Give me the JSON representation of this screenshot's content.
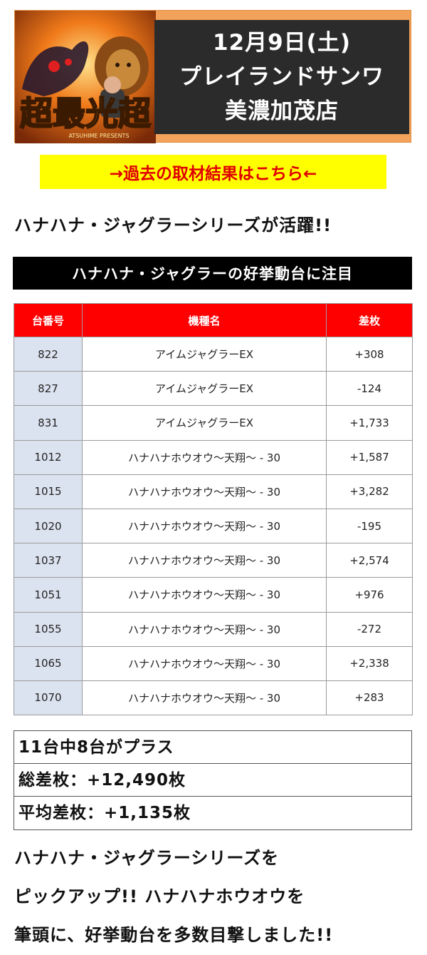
{
  "banner": {
    "logo_text": "超最光超",
    "logo_subtext": "ATSUHIME PRESENTS",
    "date": "12月9日(土)",
    "store_line1": "プレイランドサンワ",
    "store_line2": "美濃加茂店"
  },
  "past_link": "→過去の取材結果はこちら←",
  "headline": "ハナハナ・ジャグラーシリーズが活躍!!",
  "section_title": "ハナハナ・ジャグラーの好挙動台に注目",
  "table": {
    "headers": [
      "台番号",
      "機種名",
      "差枚"
    ],
    "rows": [
      [
        "822",
        "アイムジャグラーEX",
        "+308"
      ],
      [
        "827",
        "アイムジャグラーEX",
        "-124"
      ],
      [
        "831",
        "アイムジャグラーEX",
        "+1,733"
      ],
      [
        "1012",
        "ハナハナホウオウ～天翔～ - 30",
        "+1,587"
      ],
      [
        "1015",
        "ハナハナホウオウ～天翔～ - 30",
        "+3,282"
      ],
      [
        "1020",
        "ハナハナホウオウ～天翔～ - 30",
        "-195"
      ],
      [
        "1037",
        "ハナハナホウオウ～天翔～ - 30",
        "+2,574"
      ],
      [
        "1051",
        "ハナハナホウオウ～天翔～ - 30",
        "+976"
      ],
      [
        "1055",
        "ハナハナホウオウ～天翔～ - 30",
        "-272"
      ],
      [
        "1065",
        "ハナハナホウオウ～天翔～ - 30",
        "+2,338"
      ],
      [
        "1070",
        "ハナハナホウオウ～天翔～ - 30",
        "+283"
      ]
    ]
  },
  "summary": {
    "plus_count": "11台中8台がプラス",
    "total": "総差枚：+12,490枚",
    "average": "平均差枚：+1,135枚"
  },
  "closing": {
    "line1": "ハナハナ・ジャグラーシリーズを",
    "line2": "ピックアップ!! ハナハナホウオウを",
    "line3": "筆頭に、好挙動台を多数目撃しました!!"
  },
  "colors": {
    "banner_bg": "#f2a25a",
    "panel_bg": "#2b2b2b",
    "link_bg": "#ffff00",
    "link_text": "#e00000",
    "table_header": "#ff0000",
    "num_cell": "#dce3f0"
  }
}
